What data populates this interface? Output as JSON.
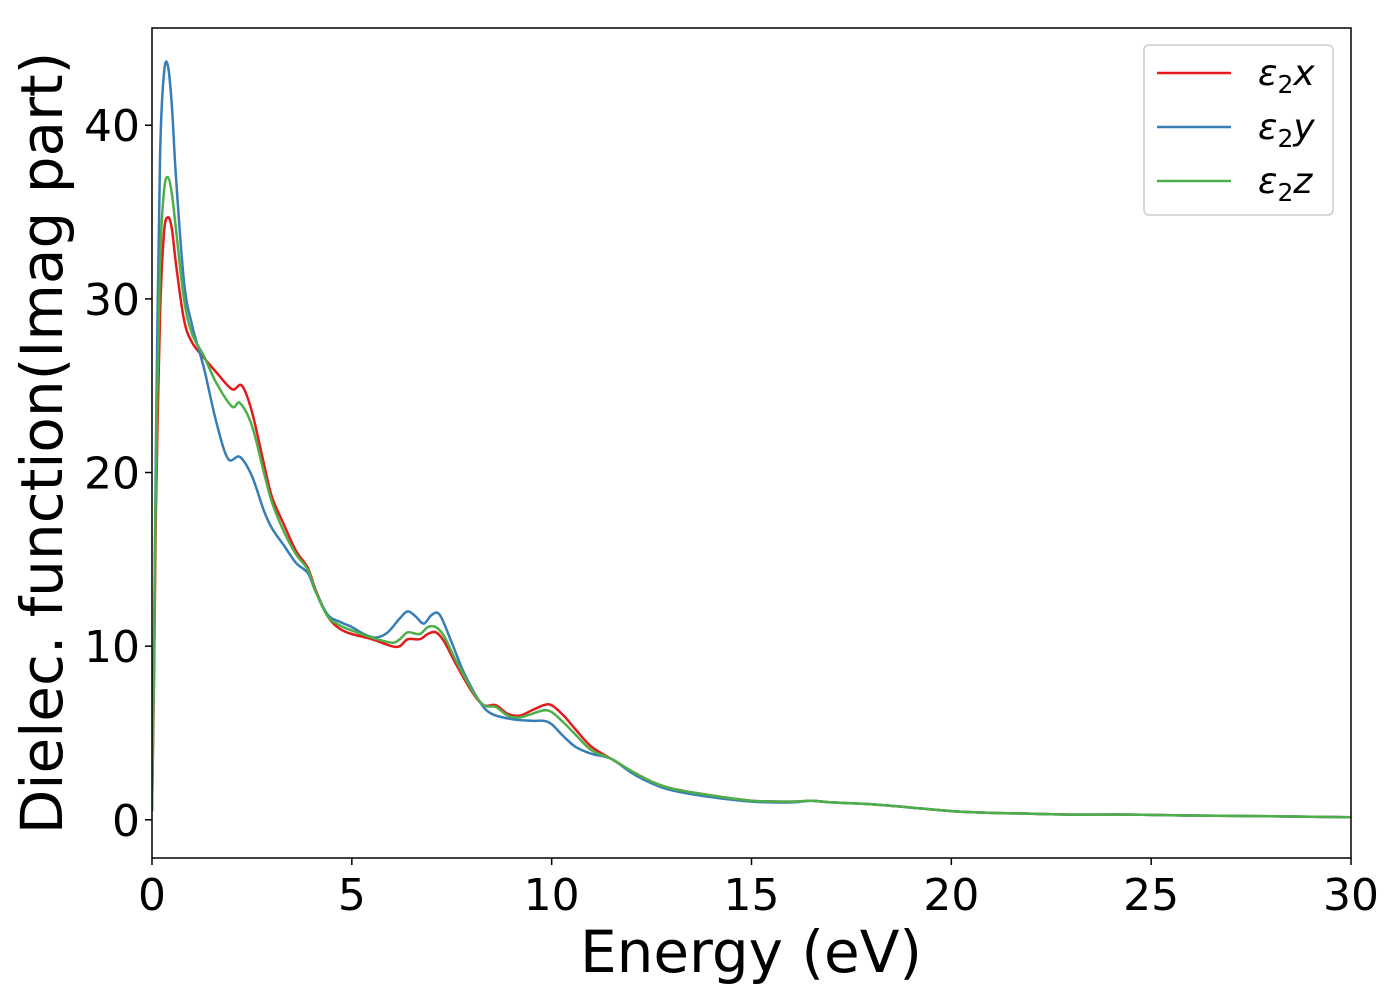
{
  "chart_data": {
    "type": "line",
    "xlabel": "Energy (eV)",
    "ylabel": "Dielec. function(Imag part)",
    "xlim": [
      0,
      30
    ],
    "ylim": [
      -2.2,
      45.6
    ],
    "x_ticks": [
      0,
      5,
      10,
      15,
      20,
      25,
      30
    ],
    "y_ticks": [
      0,
      10,
      20,
      30,
      40
    ],
    "grid": false,
    "legend_position": "top-right",
    "series": [
      {
        "name": "ε₂x",
        "legend_base": "ε",
        "legend_sub": "2",
        "legend_var": "x",
        "color": "#e41a1c",
        "points": [
          [
            0,
            0.5
          ],
          [
            0.05,
            8
          ],
          [
            0.1,
            18
          ],
          [
            0.2,
            29
          ],
          [
            0.3,
            33.8
          ],
          [
            0.4,
            34.7
          ],
          [
            0.5,
            34
          ],
          [
            0.6,
            32
          ],
          [
            0.8,
            28.8
          ],
          [
            1.0,
            27.5
          ],
          [
            1.3,
            26.6
          ],
          [
            1.6,
            25.8
          ],
          [
            2.0,
            24.8
          ],
          [
            2.25,
            25
          ],
          [
            2.5,
            23.5
          ],
          [
            2.8,
            20.5
          ],
          [
            3.0,
            18.6
          ],
          [
            3.3,
            17
          ],
          [
            3.6,
            15.5
          ],
          [
            3.9,
            14.5
          ],
          [
            4.1,
            13.2
          ],
          [
            4.4,
            11.7
          ],
          [
            4.7,
            11
          ],
          [
            5.0,
            10.7
          ],
          [
            5.5,
            10.4
          ],
          [
            6.0,
            10
          ],
          [
            6.2,
            10
          ],
          [
            6.4,
            10.4
          ],
          [
            6.7,
            10.4
          ],
          [
            6.9,
            10.7
          ],
          [
            7.1,
            10.8
          ],
          [
            7.3,
            10.3
          ],
          [
            7.6,
            9
          ],
          [
            8.0,
            7.4
          ],
          [
            8.3,
            6.6
          ],
          [
            8.6,
            6.6
          ],
          [
            8.9,
            6.1
          ],
          [
            9.2,
            6
          ],
          [
            9.5,
            6.3
          ],
          [
            9.8,
            6.6
          ],
          [
            10.0,
            6.6
          ],
          [
            10.3,
            6
          ],
          [
            10.6,
            5.2
          ],
          [
            11.0,
            4.2
          ],
          [
            11.5,
            3.5
          ],
          [
            12.0,
            2.8
          ],
          [
            12.5,
            2.2
          ],
          [
            13.0,
            1.8
          ],
          [
            14.0,
            1.4
          ],
          [
            15.0,
            1.1
          ],
          [
            16.0,
            1.05
          ],
          [
            16.5,
            1.1
          ],
          [
            17.0,
            1.0
          ],
          [
            18.0,
            0.9
          ],
          [
            19.0,
            0.7
          ],
          [
            20.0,
            0.5
          ],
          [
            21.0,
            0.4
          ],
          [
            22.0,
            0.35
          ],
          [
            23.0,
            0.3
          ],
          [
            24.5,
            0.3
          ],
          [
            26.0,
            0.25
          ],
          [
            28.0,
            0.2
          ],
          [
            30.0,
            0.15
          ]
        ]
      },
      {
        "name": "ε₂y",
        "legend_base": "ε",
        "legend_sub": "2",
        "legend_var": "y",
        "color": "#377eb8",
        "points": [
          [
            0,
            0.5
          ],
          [
            0.05,
            10
          ],
          [
            0.1,
            22
          ],
          [
            0.2,
            38
          ],
          [
            0.3,
            43
          ],
          [
            0.4,
            43.4
          ],
          [
            0.5,
            41
          ],
          [
            0.6,
            37
          ],
          [
            0.8,
            31
          ],
          [
            1.0,
            28.5
          ],
          [
            1.3,
            26
          ],
          [
            1.6,
            23
          ],
          [
            1.9,
            20.8
          ],
          [
            2.2,
            20.9
          ],
          [
            2.5,
            19.8
          ],
          [
            2.8,
            17.8
          ],
          [
            3.0,
            16.8
          ],
          [
            3.3,
            15.8
          ],
          [
            3.6,
            14.8
          ],
          [
            3.9,
            14.2
          ],
          [
            4.1,
            13.1
          ],
          [
            4.4,
            11.8
          ],
          [
            4.7,
            11.4
          ],
          [
            5.0,
            11.1
          ],
          [
            5.3,
            10.7
          ],
          [
            5.6,
            10.5
          ],
          [
            5.9,
            10.8
          ],
          [
            6.2,
            11.6
          ],
          [
            6.4,
            12
          ],
          [
            6.6,
            11.7
          ],
          [
            6.8,
            11.3
          ],
          [
            7.0,
            11.8
          ],
          [
            7.2,
            11.8
          ],
          [
            7.5,
            10.2
          ],
          [
            7.8,
            8.5
          ],
          [
            8.2,
            6.8
          ],
          [
            8.5,
            6.1
          ],
          [
            9.0,
            5.8
          ],
          [
            9.5,
            5.7
          ],
          [
            9.8,
            5.7
          ],
          [
            10.0,
            5.5
          ],
          [
            10.3,
            4.8
          ],
          [
            10.6,
            4.2
          ],
          [
            11.0,
            3.8
          ],
          [
            11.5,
            3.5
          ],
          [
            12.0,
            2.7
          ],
          [
            12.5,
            2.1
          ],
          [
            13.0,
            1.7
          ],
          [
            14.0,
            1.3
          ],
          [
            15.0,
            1.05
          ],
          [
            16.0,
            1.0
          ],
          [
            16.5,
            1.1
          ],
          [
            17.0,
            1.0
          ],
          [
            18.0,
            0.9
          ],
          [
            19.0,
            0.7
          ],
          [
            20.0,
            0.5
          ],
          [
            21.0,
            0.4
          ],
          [
            22.0,
            0.35
          ],
          [
            23.0,
            0.3
          ],
          [
            24.5,
            0.3
          ],
          [
            26.0,
            0.25
          ],
          [
            28.0,
            0.2
          ],
          [
            30.0,
            0.15
          ]
        ]
      },
      {
        "name": "ε₂z",
        "legend_base": "ε",
        "legend_sub": "2",
        "legend_var": "z",
        "color": "#4daf4a",
        "points": [
          [
            0,
            0.5
          ],
          [
            0.05,
            9
          ],
          [
            0.1,
            20
          ],
          [
            0.2,
            32
          ],
          [
            0.3,
            36.2
          ],
          [
            0.4,
            37
          ],
          [
            0.5,
            36
          ],
          [
            0.6,
            34
          ],
          [
            0.8,
            30
          ],
          [
            1.0,
            28
          ],
          [
            1.3,
            26.7
          ],
          [
            1.6,
            25.2
          ],
          [
            2.0,
            23.8
          ],
          [
            2.2,
            24
          ],
          [
            2.5,
            22.7
          ],
          [
            2.8,
            20
          ],
          [
            3.0,
            18.3
          ],
          [
            3.3,
            16.6
          ],
          [
            3.6,
            15.3
          ],
          [
            3.9,
            14.4
          ],
          [
            4.1,
            13.1
          ],
          [
            4.4,
            11.7
          ],
          [
            4.7,
            11.2
          ],
          [
            5.0,
            10.9
          ],
          [
            5.5,
            10.5
          ],
          [
            6.0,
            10.2
          ],
          [
            6.2,
            10.4
          ],
          [
            6.4,
            10.8
          ],
          [
            6.7,
            10.7
          ],
          [
            6.9,
            11.1
          ],
          [
            7.1,
            11.1
          ],
          [
            7.3,
            10.6
          ],
          [
            7.6,
            9.2
          ],
          [
            8.0,
            7.5
          ],
          [
            8.3,
            6.6
          ],
          [
            8.6,
            6.5
          ],
          [
            8.9,
            6.0
          ],
          [
            9.2,
            5.9
          ],
          [
            9.5,
            6.1
          ],
          [
            9.8,
            6.3
          ],
          [
            10.0,
            6.2
          ],
          [
            10.3,
            5.6
          ],
          [
            10.6,
            4.9
          ],
          [
            11.0,
            4.0
          ],
          [
            11.5,
            3.5
          ],
          [
            12.0,
            2.8
          ],
          [
            12.5,
            2.2
          ],
          [
            13.0,
            1.8
          ],
          [
            14.0,
            1.4
          ],
          [
            15.0,
            1.1
          ],
          [
            16.0,
            1.05
          ],
          [
            16.5,
            1.1
          ],
          [
            17.0,
            1.0
          ],
          [
            18.0,
            0.9
          ],
          [
            19.0,
            0.7
          ],
          [
            20.0,
            0.5
          ],
          [
            21.0,
            0.4
          ],
          [
            22.0,
            0.35
          ],
          [
            23.0,
            0.3
          ],
          [
            24.5,
            0.3
          ],
          [
            26.0,
            0.25
          ],
          [
            28.0,
            0.2
          ],
          [
            30.0,
            0.15
          ]
        ]
      }
    ]
  }
}
